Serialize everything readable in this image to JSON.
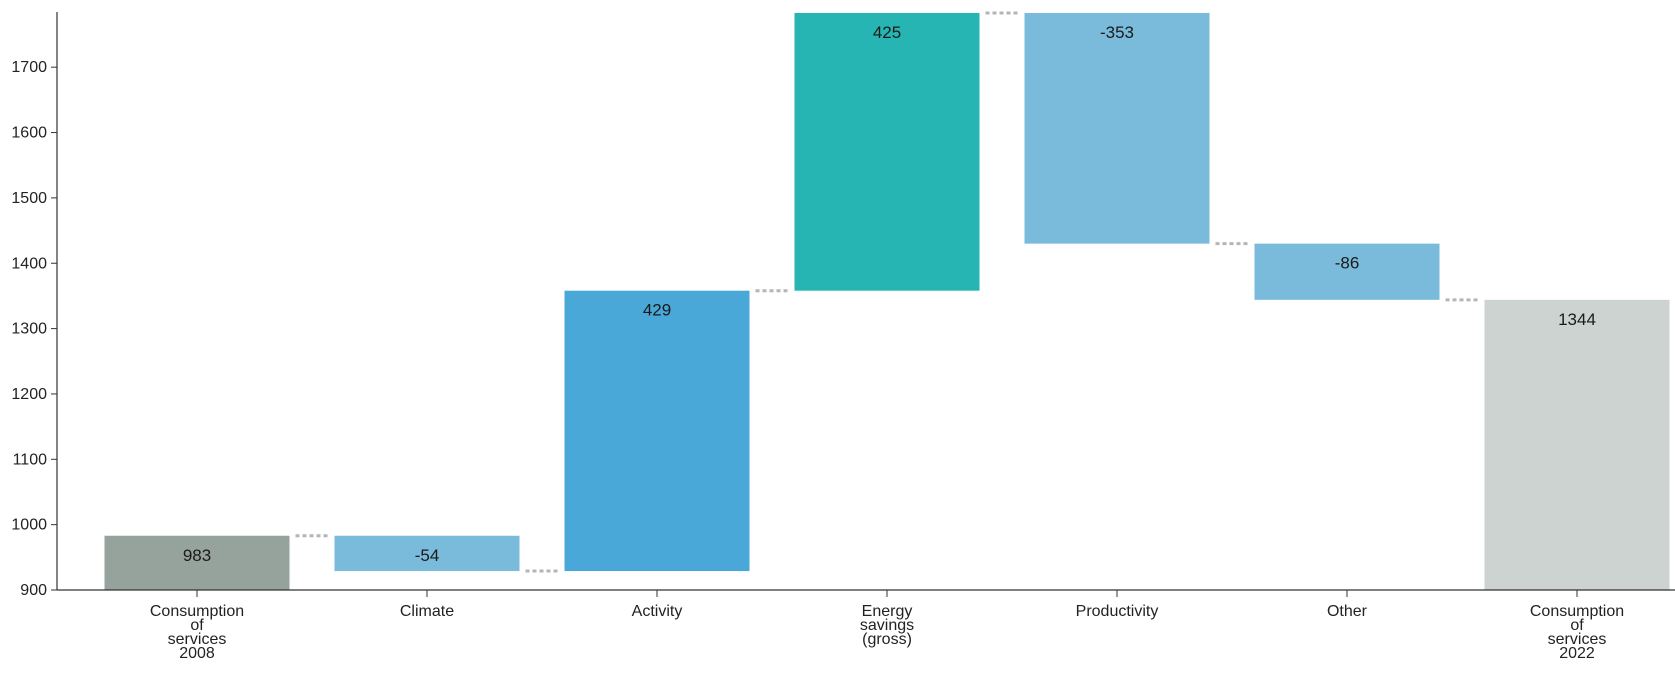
{
  "chart_data": {
    "type": "bar",
    "subtype": "waterfall",
    "title": "",
    "xlabel": "",
    "ylabel": "",
    "ylim": [
      900,
      1780
    ],
    "yticks": [
      900,
      1000,
      1100,
      1200,
      1300,
      1400,
      1500,
      1600,
      1700
    ],
    "grid": false,
    "legend": "none",
    "categories": [
      [
        "Consumption",
        "of",
        "services",
        "2008"
      ],
      [
        "Climate"
      ],
      [
        "Activity"
      ],
      [
        "Energy",
        "savings",
        "(gross)"
      ],
      [
        "Productivity"
      ],
      [
        "Other"
      ],
      [
        "Consumption",
        "of",
        "services",
        "2022"
      ]
    ],
    "steps": [
      {
        "kind": "total",
        "value": 983,
        "label": "983",
        "color": "#96a39c"
      },
      {
        "kind": "delta",
        "value": -54,
        "label": "-54",
        "color": "#7abbdc"
      },
      {
        "kind": "delta",
        "value": 429,
        "label": "429",
        "color": "#4aa8d8"
      },
      {
        "kind": "delta",
        "value": 425,
        "label": "425",
        "color": "#26b5b3"
      },
      {
        "kind": "delta",
        "value": -353,
        "label": "-353",
        "color": "#7abbdc"
      },
      {
        "kind": "delta",
        "value": -86,
        "label": "-86",
        "color": "#7abbdc"
      },
      {
        "kind": "total",
        "value": 1344,
        "label": "1344",
        "color": "#cdd3d1"
      }
    ]
  }
}
